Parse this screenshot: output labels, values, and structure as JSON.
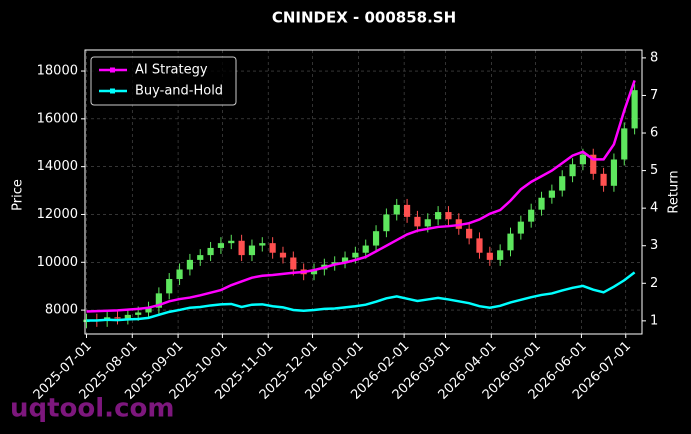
{
  "chart_data": {
    "type": "candlestick",
    "title": "CNINDEX - 000858.SH",
    "ylabel": "Price",
    "y2label": "Return",
    "watermark": "uqtool.com",
    "x": [
      "2025-07-01",
      "2025-07-08",
      "2025-07-15",
      "2025-07-22",
      "2025-07-29",
      "2025-08-05",
      "2025-08-12",
      "2025-08-19",
      "2025-08-26",
      "2025-09-02",
      "2025-09-09",
      "2025-09-16",
      "2025-09-23",
      "2025-09-30",
      "2025-10-07",
      "2025-10-14",
      "2025-10-21",
      "2025-10-28",
      "2025-11-04",
      "2025-11-11",
      "2025-11-18",
      "2025-11-25",
      "2025-12-02",
      "2025-12-09",
      "2025-12-16",
      "2025-12-23",
      "2025-12-30",
      "2026-01-06",
      "2026-01-13",
      "2026-01-20",
      "2026-01-27",
      "2026-02-03",
      "2026-02-10",
      "2026-02-17",
      "2026-02-24",
      "2026-03-03",
      "2026-03-10",
      "2026-03-17",
      "2026-03-24",
      "2026-03-31",
      "2026-04-07",
      "2026-04-14",
      "2026-04-21",
      "2026-04-28",
      "2026-05-05",
      "2026-05-12",
      "2026-05-19",
      "2026-05-26",
      "2026-06-02",
      "2026-06-09",
      "2026-06-16",
      "2026-06-23",
      "2026-06-30",
      "2026-07-07"
    ],
    "open": [
      7500,
      7600,
      7550,
      7700,
      7650,
      7800,
      7900,
      8100,
      8700,
      9300,
      9700,
      10100,
      10300,
      10600,
      10800,
      10900,
      10300,
      10700,
      10800,
      10400,
      10200,
      9700,
      9500,
      9700,
      9900,
      10000,
      10200,
      10400,
      10700,
      11300,
      12000,
      12400,
      11900,
      11500,
      11800,
      12100,
      11800,
      11400,
      11000,
      10400,
      10100,
      10500,
      11200,
      11700,
      12200,
      12700,
      13000,
      13600,
      14100,
      14500,
      13700,
      13200,
      14300,
      15600
    ],
    "high": [
      7850,
      7850,
      7950,
      7950,
      8050,
      8150,
      8350,
      8950,
      9550,
      9950,
      10350,
      10550,
      10850,
      11050,
      11150,
      11150,
      10950,
      11050,
      11050,
      10650,
      10450,
      9950,
      9950,
      10150,
      10250,
      10450,
      10650,
      10950,
      11550,
      12250,
      12650,
      12650,
      12150,
      12050,
      12350,
      12350,
      12050,
      11650,
      11250,
      10650,
      10750,
      11450,
      11950,
      12450,
      12950,
      13250,
      13850,
      14350,
      14750,
      14750,
      13950,
      14550,
      15850,
      17450
    ],
    "low": [
      7250,
      7300,
      7300,
      7400,
      7400,
      7550,
      7650,
      7850,
      8450,
      9050,
      9450,
      9850,
      10050,
      10350,
      10550,
      10050,
      10050,
      10450,
      10150,
      9950,
      9450,
      9250,
      9250,
      9450,
      9650,
      9750,
      9950,
      10150,
      10450,
      11050,
      11750,
      11650,
      11250,
      11250,
      11550,
      11550,
      11150,
      10750,
      10150,
      9850,
      9850,
      10250,
      10950,
      11450,
      11950,
      12450,
      12750,
      13350,
      13850,
      13450,
      12950,
      12950,
      14050,
      15350
    ],
    "close": [
      7600,
      7550,
      7700,
      7650,
      7800,
      7900,
      8100,
      8700,
      9300,
      9700,
      10100,
      10300,
      10600,
      10800,
      10900,
      10300,
      10700,
      10800,
      10400,
      10200,
      9700,
      9500,
      9700,
      9900,
      10000,
      10200,
      10400,
      10700,
      11300,
      12000,
      12400,
      11900,
      11500,
      11800,
      12100,
      11800,
      11400,
      11000,
      10400,
      10100,
      10500,
      11200,
      11700,
      12200,
      12700,
      13000,
      13600,
      14100,
      14500,
      13700,
      13200,
      14300,
      15600,
      17200
    ],
    "up_color": "#5ee65e",
    "down_color": "#ff5050",
    "series": [
      {
        "name": "AI Strategy",
        "color": "#ff00ff",
        "axis": "y2",
        "values": [
          1.25,
          1.26,
          1.27,
          1.28,
          1.3,
          1.32,
          1.35,
          1.42,
          1.52,
          1.58,
          1.62,
          1.68,
          1.75,
          1.82,
          1.95,
          2.05,
          2.15,
          2.2,
          2.22,
          2.25,
          2.28,
          2.3,
          2.35,
          2.42,
          2.5,
          2.55,
          2.62,
          2.7,
          2.85,
          3.0,
          3.15,
          3.3,
          3.4,
          3.45,
          3.5,
          3.52,
          3.55,
          3.6,
          3.7,
          3.85,
          3.95,
          4.2,
          4.5,
          4.7,
          4.85,
          5.0,
          5.2,
          5.4,
          5.5,
          5.3,
          5.3,
          5.7,
          6.6,
          7.4
        ]
      },
      {
        "name": "Buy-and-Hold",
        "color": "#00ffff",
        "axis": "y2",
        "values": [
          1.01,
          1.01,
          1.03,
          1.02,
          1.04,
          1.05,
          1.08,
          1.16,
          1.24,
          1.29,
          1.35,
          1.37,
          1.41,
          1.44,
          1.45,
          1.37,
          1.43,
          1.44,
          1.39,
          1.36,
          1.29,
          1.27,
          1.29,
          1.32,
          1.33,
          1.36,
          1.39,
          1.43,
          1.51,
          1.6,
          1.65,
          1.59,
          1.53,
          1.57,
          1.61,
          1.57,
          1.52,
          1.47,
          1.39,
          1.35,
          1.4,
          1.49,
          1.56,
          1.63,
          1.69,
          1.73,
          1.81,
          1.88,
          1.93,
          1.83,
          1.76,
          1.91,
          2.08,
          2.29
        ]
      }
    ],
    "xlim": [
      "2025-06-30",
      "2026-07-12"
    ],
    "xticks": [
      "2025-07-01",
      "2025-08-01",
      "2025-09-01",
      "2025-10-01",
      "2025-11-01",
      "2025-12-01",
      "2026-01-01",
      "2026-02-01",
      "2026-03-01",
      "2026-04-01",
      "2026-05-01",
      "2026-06-01",
      "2026-07-01"
    ],
    "ylim": [
      7000,
      18880
    ],
    "yticks": [
      8000,
      10000,
      12000,
      14000,
      16000,
      18000
    ],
    "y2lim": [
      0.65,
      8.21
    ],
    "y2ticks": [
      1,
      2,
      3,
      4,
      5,
      6,
      7,
      8
    ],
    "grid": true,
    "legend": "upper left"
  }
}
